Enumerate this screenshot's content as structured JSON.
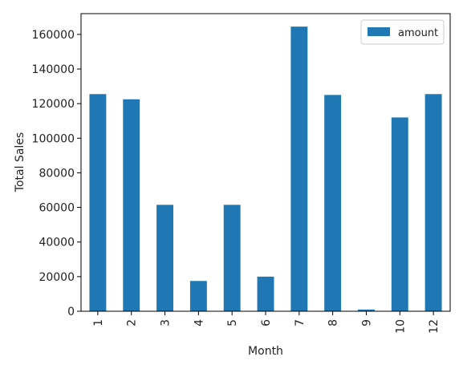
{
  "chart_data": {
    "type": "bar",
    "categories": [
      "1",
      "2",
      "3",
      "4",
      "5",
      "6",
      "7",
      "8",
      "9",
      "10",
      "12"
    ],
    "series": [
      {
        "name": "amount",
        "values": [
          125500,
          122500,
          61500,
          17500,
          61500,
          20000,
          164500,
          125000,
          1000,
          112000,
          125500
        ]
      }
    ],
    "xlabel": "Month",
    "ylabel": "Total Sales",
    "ylim": [
      0,
      172000
    ],
    "yticks": [
      0,
      20000,
      40000,
      60000,
      80000,
      100000,
      120000,
      140000,
      160000
    ],
    "ytick_labels": [
      "0",
      "20000",
      "40000",
      "60000",
      "80000",
      "100000",
      "120000",
      "140000",
      "160000"
    ],
    "legend_position": "top-right",
    "grid": false,
    "colors": {
      "bar": "#1f77b4",
      "axis": "#000000",
      "text": "#222222"
    }
  }
}
